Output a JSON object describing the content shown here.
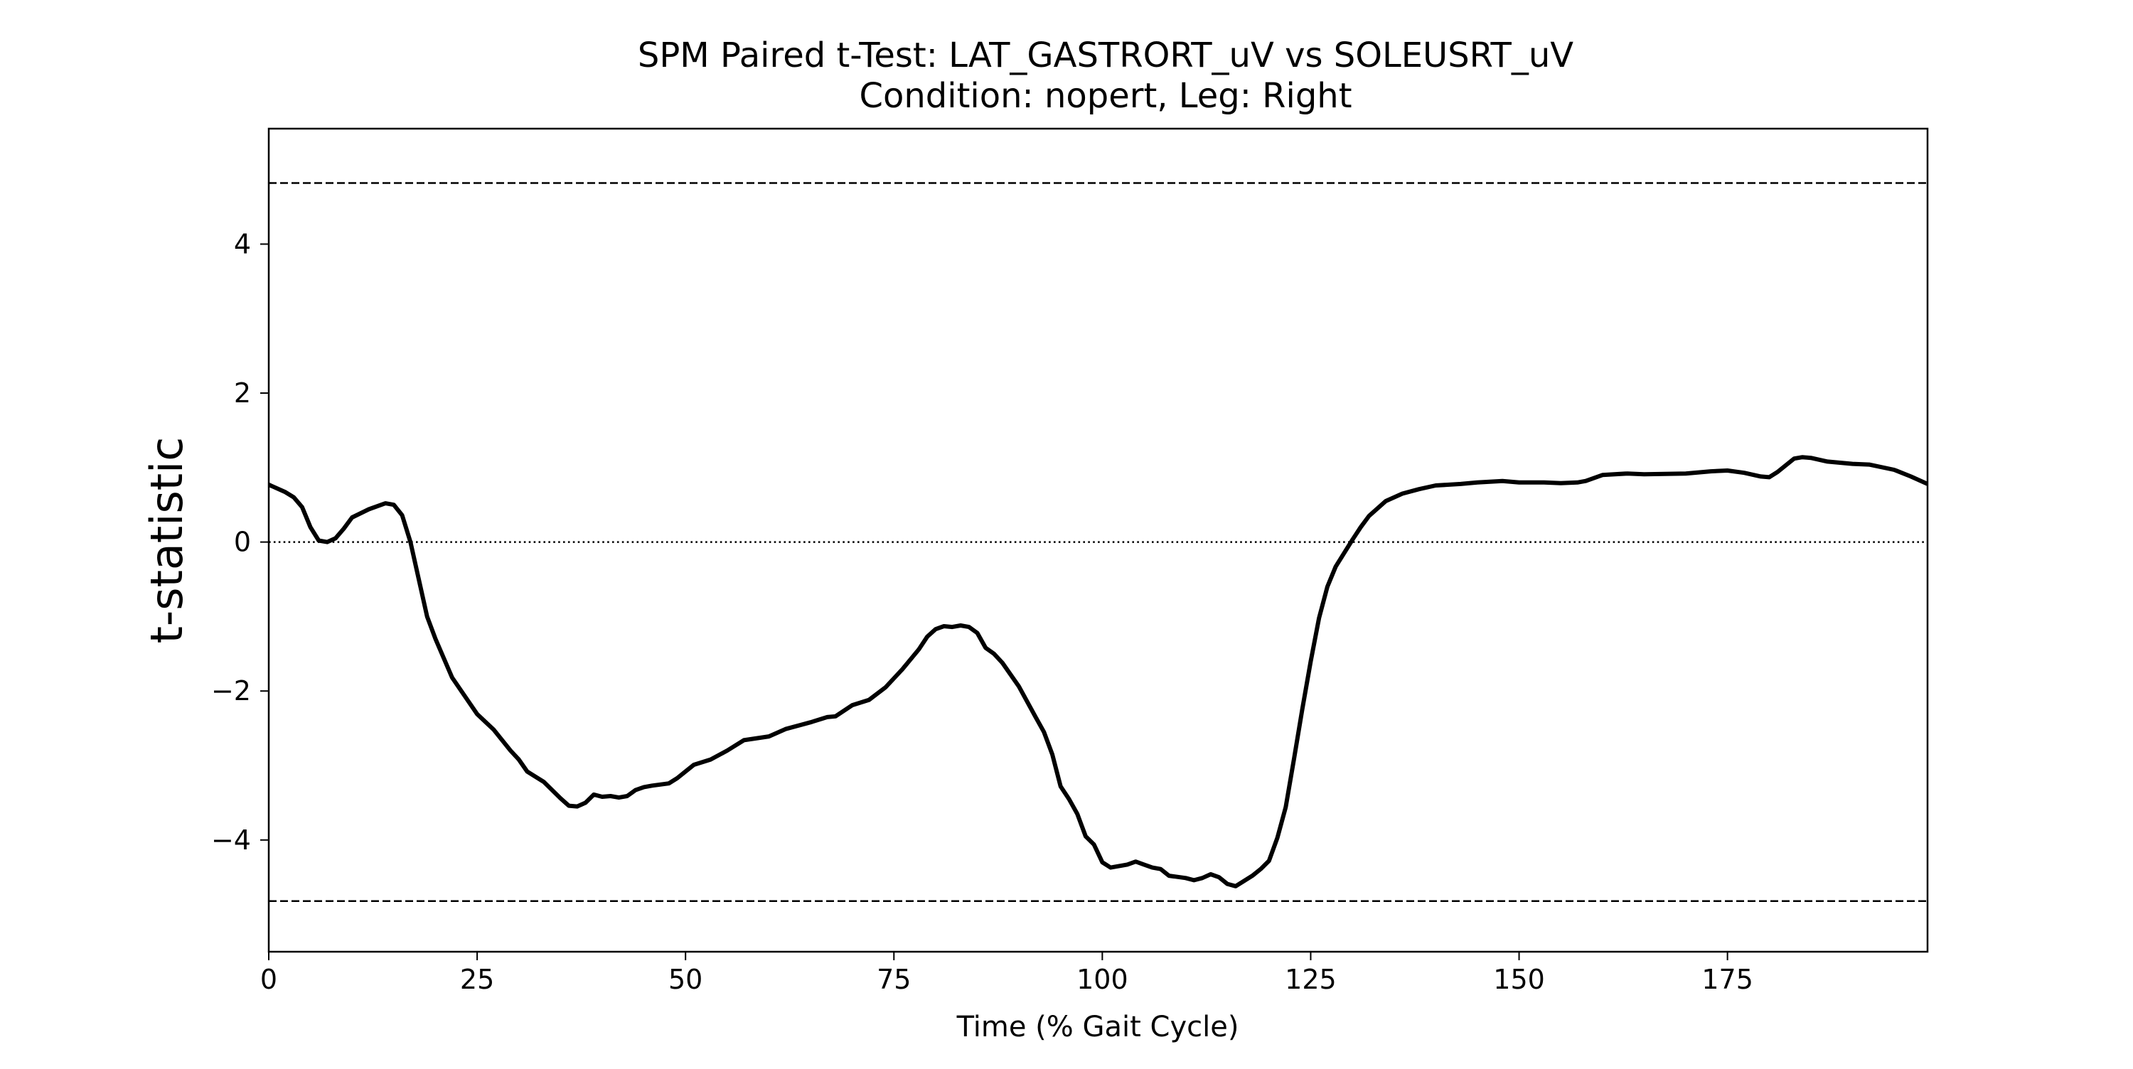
{
  "chart_data": {
    "type": "line",
    "title": "SPM Paired t-Test: LAT_GASTRORT_uV vs SOLEUSRT_uV",
    "subtitle": "Condition: nopert, Leg: Right",
    "xlabel": "Time (% Gait Cycle)",
    "ylabel": "t-statistic",
    "xlim": [
      0,
      199
    ],
    "ylim": [
      -5.5,
      5.55
    ],
    "x_ticks": [
      0,
      25,
      50,
      75,
      100,
      125,
      150,
      175
    ],
    "y_ticks": [
      -4,
      -2,
      0,
      2,
      4
    ],
    "grid": false,
    "legend": "none",
    "thresholds": [
      4.82,
      -4.82
    ],
    "zero_line": 0,
    "colors": {
      "series": "#000000",
      "threshold": "#000000",
      "zero": "#000000",
      "frame": "#000000"
    },
    "series": [
      {
        "x": [
          0,
          2,
          3,
          4,
          5,
          6,
          7,
          8,
          9,
          10,
          12,
          14,
          15,
          16,
          17,
          18,
          19,
          20,
          22,
          25,
          27,
          29,
          30,
          31,
          33,
          35,
          36,
          37,
          38,
          39,
          40,
          41,
          42,
          43,
          44,
          45,
          46,
          48,
          49,
          50,
          51,
          53,
          55,
          57,
          60,
          62,
          65,
          67,
          68,
          70,
          72,
          74,
          76,
          78,
          79,
          80,
          81,
          82,
          83,
          84,
          85,
          86,
          87,
          88,
          90,
          92,
          93,
          94,
          95,
          96,
          97,
          98,
          99,
          100,
          101,
          103,
          104,
          105,
          106,
          107,
          108,
          110,
          111,
          112,
          113,
          114,
          115,
          116,
          117,
          118,
          119,
          120,
          121,
          122,
          123,
          124,
          125,
          126,
          127,
          128,
          130,
          131,
          132,
          133,
          134,
          136,
          138,
          140,
          143,
          145,
          148,
          150,
          153,
          155,
          157,
          158,
          160,
          163,
          165,
          170,
          173,
          175,
          177,
          179,
          180,
          181,
          183,
          184,
          185,
          187,
          190,
          192,
          195,
          197,
          199
        ],
        "y": [
          0.77,
          0.67,
          0.6,
          0.47,
          0.2,
          0.02,
          0.0,
          0.05,
          0.18,
          0.33,
          0.44,
          0.52,
          0.5,
          0.36,
          0.0,
          -0.5,
          -1.0,
          -1.3,
          -1.82,
          -2.31,
          -2.52,
          -2.8,
          -2.92,
          -3.08,
          -3.22,
          -3.44,
          -3.54,
          -3.55,
          -3.5,
          -3.39,
          -3.42,
          -3.41,
          -3.43,
          -3.41,
          -3.33,
          -3.29,
          -3.27,
          -3.24,
          -3.17,
          -3.08,
          -2.99,
          -2.92,
          -2.8,
          -2.66,
          -2.61,
          -2.51,
          -2.42,
          -2.35,
          -2.34,
          -2.19,
          -2.12,
          -1.95,
          -1.71,
          -1.44,
          -1.27,
          -1.17,
          -1.13,
          -1.14,
          -1.12,
          -1.14,
          -1.22,
          -1.42,
          -1.5,
          -1.62,
          -1.94,
          -2.35,
          -2.55,
          -2.85,
          -3.28,
          -3.45,
          -3.65,
          -3.95,
          -4.06,
          -4.3,
          -4.37,
          -4.33,
          -4.29,
          -4.33,
          -4.37,
          -4.39,
          -4.48,
          -4.51,
          -4.54,
          -4.51,
          -4.46,
          -4.5,
          -4.59,
          -4.62,
          -4.55,
          -4.48,
          -4.39,
          -4.28,
          -3.97,
          -3.56,
          -2.91,
          -2.24,
          -1.6,
          -1.02,
          -0.6,
          -0.33,
          0.03,
          0.2,
          0.35,
          0.45,
          0.55,
          0.65,
          0.71,
          0.76,
          0.78,
          0.8,
          0.82,
          0.8,
          0.8,
          0.79,
          0.8,
          0.82,
          0.9,
          0.92,
          0.91,
          0.92,
          0.95,
          0.96,
          0.93,
          0.88,
          0.87,
          0.94,
          1.12,
          1.14,
          1.13,
          1.08,
          1.05,
          1.04,
          0.97,
          0.88,
          0.78
        ]
      }
    ]
  }
}
